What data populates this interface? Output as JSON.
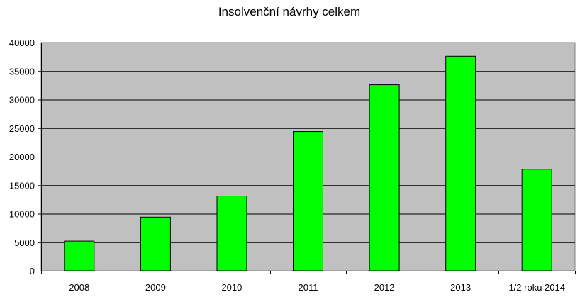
{
  "chart_data": {
    "type": "bar",
    "title": "Insolvenční návrhy celkem",
    "categories": [
      "2008",
      "2009",
      "2010",
      "2011",
      "2012",
      "2013",
      "1/2 roku 2014"
    ],
    "values": [
      5200,
      9400,
      13100,
      24400,
      32600,
      37600,
      17800
    ],
    "ylim": [
      0,
      40000
    ],
    "yticks": [
      "0",
      "5000",
      "10000",
      "15000",
      "20000",
      "25000",
      "30000",
      "35000",
      "40000"
    ],
    "xlabel": "",
    "ylabel": "",
    "grid": true,
    "legend": "none",
    "colors": {
      "bar": "#00ff00",
      "plot_bg": "#c0c0c0",
      "gridline": "#000000"
    }
  }
}
